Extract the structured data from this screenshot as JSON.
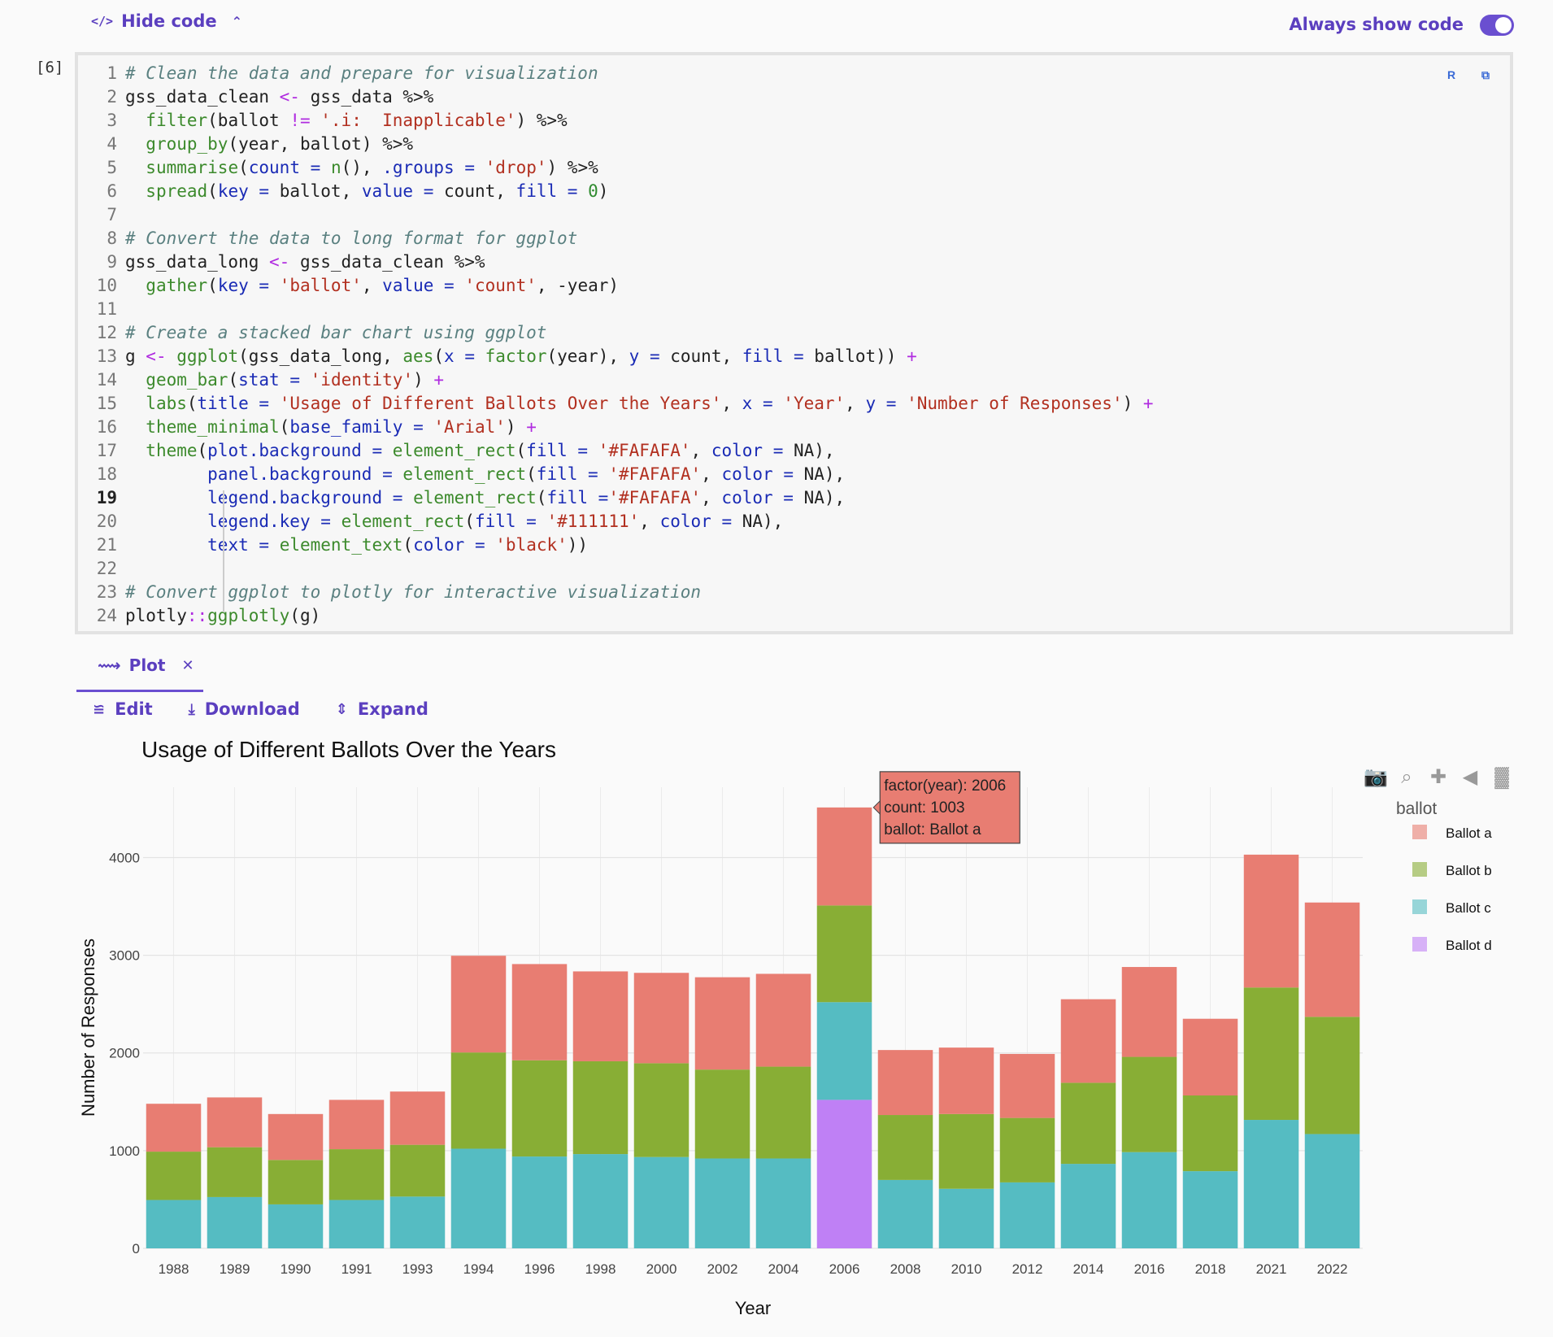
{
  "toolbar": {
    "hide_code_label": "Hide code",
    "always_show_label": "Always show code"
  },
  "cell": {
    "exec_count": "[6]",
    "lines": [
      [
        [
          "cm",
          "# Clean the data and prepare for visualization"
        ]
      ],
      [
        [
          "tx",
          "gss_data_clean "
        ],
        [
          "op",
          "<-"
        ],
        [
          "tx",
          " gss_data %>%"
        ]
      ],
      [
        [
          "tx",
          "  "
        ],
        [
          "fn",
          "filter"
        ],
        [
          "tx",
          "(ballot "
        ],
        [
          "op",
          "!="
        ],
        [
          "tx",
          " "
        ],
        [
          "st",
          "'.i:  Inapplicable'"
        ],
        [
          "tx",
          ") %>%"
        ]
      ],
      [
        [
          "tx",
          "  "
        ],
        [
          "fn",
          "group_by"
        ],
        [
          "tx",
          "(year, ballot) %>%"
        ]
      ],
      [
        [
          "tx",
          "  "
        ],
        [
          "fn",
          "summarise"
        ],
        [
          "tx",
          "("
        ],
        [
          "ar",
          "count"
        ],
        [
          "tx",
          " "
        ],
        [
          "ar",
          "="
        ],
        [
          "tx",
          " "
        ],
        [
          "fn",
          "n"
        ],
        [
          "tx",
          "(), "
        ],
        [
          "ar",
          ".groups"
        ],
        [
          "tx",
          " "
        ],
        [
          "ar",
          "="
        ],
        [
          "tx",
          " "
        ],
        [
          "st",
          "'drop'"
        ],
        [
          "tx",
          ") %>%"
        ]
      ],
      [
        [
          "tx",
          "  "
        ],
        [
          "fn",
          "spread"
        ],
        [
          "tx",
          "("
        ],
        [
          "ar",
          "key"
        ],
        [
          "tx",
          " "
        ],
        [
          "ar",
          "="
        ],
        [
          "tx",
          " ballot, "
        ],
        [
          "ar",
          "value"
        ],
        [
          "tx",
          " "
        ],
        [
          "ar",
          "="
        ],
        [
          "tx",
          " count, "
        ],
        [
          "ar",
          "fill"
        ],
        [
          "tx",
          " "
        ],
        [
          "ar",
          "="
        ],
        [
          "tx",
          " "
        ],
        [
          "nm",
          "0"
        ],
        [
          "tx",
          ")"
        ]
      ],
      [
        [
          "tx",
          ""
        ]
      ],
      [
        [
          "cm",
          "# Convert the data to long format for ggplot"
        ]
      ],
      [
        [
          "tx",
          "gss_data_long "
        ],
        [
          "op",
          "<-"
        ],
        [
          "tx",
          " gss_data_clean %>%"
        ]
      ],
      [
        [
          "tx",
          "  "
        ],
        [
          "fn",
          "gather"
        ],
        [
          "tx",
          "("
        ],
        [
          "ar",
          "key"
        ],
        [
          "tx",
          " "
        ],
        [
          "ar",
          "="
        ],
        [
          "tx",
          " "
        ],
        [
          "st",
          "'ballot'"
        ],
        [
          "tx",
          ", "
        ],
        [
          "ar",
          "value"
        ],
        [
          "tx",
          " "
        ],
        [
          "ar",
          "="
        ],
        [
          "tx",
          " "
        ],
        [
          "st",
          "'count'"
        ],
        [
          "tx",
          ", -year)"
        ]
      ],
      [
        [
          "tx",
          ""
        ]
      ],
      [
        [
          "cm",
          "# Create a stacked bar chart using ggplot"
        ]
      ],
      [
        [
          "tx",
          "g "
        ],
        [
          "op",
          "<-"
        ],
        [
          "tx",
          " "
        ],
        [
          "fn",
          "ggplot"
        ],
        [
          "tx",
          "(gss_data_long, "
        ],
        [
          "fn",
          "aes"
        ],
        [
          "tx",
          "("
        ],
        [
          "ar",
          "x"
        ],
        [
          "tx",
          " "
        ],
        [
          "ar",
          "="
        ],
        [
          "tx",
          " "
        ],
        [
          "fn",
          "factor"
        ],
        [
          "tx",
          "(year), "
        ],
        [
          "ar",
          "y"
        ],
        [
          "tx",
          " "
        ],
        [
          "ar",
          "="
        ],
        [
          "tx",
          " count, "
        ],
        [
          "ar",
          "fill"
        ],
        [
          "tx",
          " "
        ],
        [
          "ar",
          "="
        ],
        [
          "tx",
          " ballot)) "
        ],
        [
          "op",
          "+"
        ]
      ],
      [
        [
          "tx",
          "  "
        ],
        [
          "fn",
          "geom_bar"
        ],
        [
          "tx",
          "("
        ],
        [
          "ar",
          "stat"
        ],
        [
          "tx",
          " "
        ],
        [
          "ar",
          "="
        ],
        [
          "tx",
          " "
        ],
        [
          "st",
          "'identity'"
        ],
        [
          "tx",
          ") "
        ],
        [
          "op",
          "+"
        ]
      ],
      [
        [
          "tx",
          "  "
        ],
        [
          "fn",
          "labs"
        ],
        [
          "tx",
          "("
        ],
        [
          "ar",
          "title"
        ],
        [
          "tx",
          " "
        ],
        [
          "ar",
          "="
        ],
        [
          "tx",
          " "
        ],
        [
          "st",
          "'Usage of Different Ballots Over the Years'"
        ],
        [
          "tx",
          ", "
        ],
        [
          "ar",
          "x"
        ],
        [
          "tx",
          " "
        ],
        [
          "ar",
          "="
        ],
        [
          "tx",
          " "
        ],
        [
          "st",
          "'Year'"
        ],
        [
          "tx",
          ", "
        ],
        [
          "ar",
          "y"
        ],
        [
          "tx",
          " "
        ],
        [
          "ar",
          "="
        ],
        [
          "tx",
          " "
        ],
        [
          "st",
          "'Number of Responses'"
        ],
        [
          "tx",
          ") "
        ],
        [
          "op",
          "+"
        ]
      ],
      [
        [
          "tx",
          "  "
        ],
        [
          "fn",
          "theme_minimal"
        ],
        [
          "tx",
          "("
        ],
        [
          "ar",
          "base_family"
        ],
        [
          "tx",
          " "
        ],
        [
          "ar",
          "="
        ],
        [
          "tx",
          " "
        ],
        [
          "st",
          "'Arial'"
        ],
        [
          "tx",
          ") "
        ],
        [
          "op",
          "+"
        ]
      ],
      [
        [
          "tx",
          "  "
        ],
        [
          "fn",
          "theme"
        ],
        [
          "tx",
          "("
        ],
        [
          "ar",
          "plot.background"
        ],
        [
          "tx",
          " "
        ],
        [
          "ar",
          "="
        ],
        [
          "tx",
          " "
        ],
        [
          "fn",
          "element_rect"
        ],
        [
          "tx",
          "("
        ],
        [
          "ar",
          "fill"
        ],
        [
          "tx",
          " "
        ],
        [
          "ar",
          "="
        ],
        [
          "tx",
          " "
        ],
        [
          "st",
          "'#FAFAFA'"
        ],
        [
          "tx",
          ", "
        ],
        [
          "ar",
          "color"
        ],
        [
          "tx",
          " "
        ],
        [
          "ar",
          "="
        ],
        [
          "tx",
          " NA),"
        ]
      ],
      [
        [
          "tx",
          "        "
        ],
        [
          "ar",
          "panel.background"
        ],
        [
          "tx",
          " "
        ],
        [
          "ar",
          "="
        ],
        [
          "tx",
          " "
        ],
        [
          "fn",
          "element_rect"
        ],
        [
          "tx",
          "("
        ],
        [
          "ar",
          "fill"
        ],
        [
          "tx",
          " "
        ],
        [
          "ar",
          "="
        ],
        [
          "tx",
          " "
        ],
        [
          "st",
          "'#FAFAFA'"
        ],
        [
          "tx",
          ", "
        ],
        [
          "ar",
          "color"
        ],
        [
          "tx",
          " "
        ],
        [
          "ar",
          "="
        ],
        [
          "tx",
          " NA),"
        ]
      ],
      [
        [
          "tx",
          "        "
        ],
        [
          "ar",
          "legend.background"
        ],
        [
          "tx",
          " "
        ],
        [
          "ar",
          "="
        ],
        [
          "tx",
          " "
        ],
        [
          "fn",
          "element_rect"
        ],
        [
          "tx",
          "("
        ],
        [
          "ar",
          "fill"
        ],
        [
          "tx",
          " "
        ],
        [
          "ar",
          "="
        ],
        [
          "st",
          "'#FAFAFA'"
        ],
        [
          "tx",
          ", "
        ],
        [
          "ar",
          "color"
        ],
        [
          "tx",
          " "
        ],
        [
          "ar",
          "="
        ],
        [
          "tx",
          " NA),"
        ]
      ],
      [
        [
          "tx",
          "        "
        ],
        [
          "ar",
          "legend.key"
        ],
        [
          "tx",
          " "
        ],
        [
          "ar",
          "="
        ],
        [
          "tx",
          " "
        ],
        [
          "fn",
          "element_rect"
        ],
        [
          "tx",
          "("
        ],
        [
          "ar",
          "fill"
        ],
        [
          "tx",
          " "
        ],
        [
          "ar",
          "="
        ],
        [
          "tx",
          " "
        ],
        [
          "st",
          "'#111111'"
        ],
        [
          "tx",
          ", "
        ],
        [
          "ar",
          "color"
        ],
        [
          "tx",
          " "
        ],
        [
          "ar",
          "="
        ],
        [
          "tx",
          " NA),"
        ]
      ],
      [
        [
          "tx",
          "        "
        ],
        [
          "ar",
          "text"
        ],
        [
          "tx",
          " "
        ],
        [
          "ar",
          "="
        ],
        [
          "tx",
          " "
        ],
        [
          "fn",
          "element_text"
        ],
        [
          "tx",
          "("
        ],
        [
          "ar",
          "color"
        ],
        [
          "tx",
          " "
        ],
        [
          "ar",
          "="
        ],
        [
          "tx",
          " "
        ],
        [
          "st",
          "'black'"
        ],
        [
          "tx",
          "))"
        ]
      ],
      [
        [
          "tx",
          ""
        ]
      ],
      [
        [
          "cm",
          "# Convert ggplot to plotly for interactive visualization"
        ]
      ],
      [
        [
          "tx",
          "plotly"
        ],
        [
          "op",
          "::"
        ],
        [
          "fn",
          "ggplotly"
        ],
        [
          "tx",
          "(g)"
        ]
      ]
    ]
  },
  "output": {
    "tab_label": "Plot",
    "actions": [
      "Edit",
      "Download",
      "Expand"
    ]
  },
  "colors": {
    "accent": "#6a4fd0",
    "ballot_a": "#e87d72",
    "ballot_b": "#88ae35",
    "ballot_c": "#55bcc2",
    "ballot_d": "#bf80f5"
  },
  "chart_data": {
    "type": "bar",
    "stacked": true,
    "title": "Usage of Different Ballots Over the Years",
    "xlabel": "Year",
    "ylabel": "Number of Responses",
    "ylim": [
      0,
      4720
    ],
    "yticks": [
      0,
      1000,
      2000,
      3000,
      4000
    ],
    "grid": true,
    "legend_title": "ballot",
    "legend_position": "right",
    "categories": [
      "1988",
      "1989",
      "1990",
      "1991",
      "1993",
      "1994",
      "1996",
      "1998",
      "2000",
      "2002",
      "2004",
      "2006",
      "2008",
      "2010",
      "2012",
      "2014",
      "2016",
      "2018",
      "2021",
      "2022"
    ],
    "series": [
      {
        "name": "Ballot d",
        "values": [
          0,
          0,
          0,
          0,
          0,
          0,
          0,
          0,
          0,
          0,
          0,
          1520,
          0,
          0,
          0,
          0,
          0,
          0,
          0,
          0
        ]
      },
      {
        "name": "Ballot c",
        "values": [
          495,
          525,
          450,
          495,
          530,
          1020,
          940,
          965,
          935,
          920,
          920,
          1000,
          700,
          610,
          675,
          865,
          985,
          790,
          1315,
          1170
        ]
      },
      {
        "name": "Ballot b",
        "values": [
          495,
          510,
          455,
          520,
          530,
          985,
          985,
          950,
          960,
          910,
          940,
          990,
          665,
          765,
          660,
          830,
          975,
          775,
          1355,
          1200
        ]
      },
      {
        "name": "Ballot a",
        "values": [
          490,
          510,
          470,
          505,
          545,
          990,
          985,
          920,
          925,
          945,
          950,
          1003,
          665,
          680,
          655,
          855,
          920,
          785,
          1360,
          1170
        ]
      }
    ],
    "tooltip": {
      "category": "2006",
      "lines": [
        "factor(year): 2006",
        "count: 1003",
        "ballot: Ballot a"
      ]
    }
  }
}
